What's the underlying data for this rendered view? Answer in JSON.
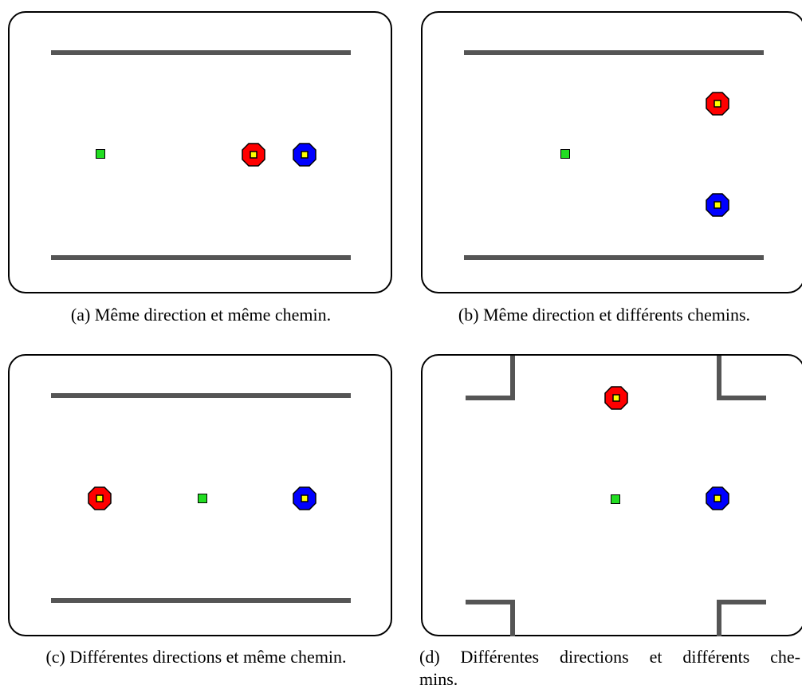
{
  "panels": [
    {
      "id": "a",
      "caption": "(a) Même direction et même chemin."
    },
    {
      "id": "b",
      "caption": "(b) Même direction et différents chemins."
    },
    {
      "id": "c",
      "caption": "(c) Différentes directions et même chemin."
    },
    {
      "id": "d",
      "caption_line1": "(d) Différentes directions et différents che-",
      "caption_line2": "mins."
    }
  ],
  "colors": {
    "robot_red": "#ff0000",
    "robot_blue": "#0000ff",
    "robot_center": "#ffff00",
    "goal": "#22dd22",
    "wall": "#555555"
  }
}
